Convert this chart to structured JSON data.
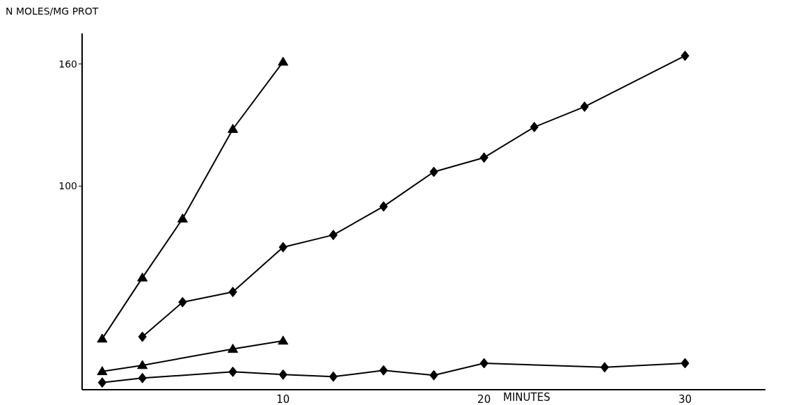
{
  "chart_data": {
    "type": "scatter",
    "xlabel": "MINUTES",
    "ylabel": "N MOLES/MG PROT",
    "xlim": [
      0,
      34
    ],
    "ylim": [
      0,
      175
    ],
    "xticks": [
      10,
      20,
      30
    ],
    "yticks": [
      100,
      160
    ],
    "grid": false,
    "legend": false,
    "line_style": "solid",
    "series": [
      {
        "type": "line",
        "marker": "triangle",
        "color": "#000000",
        "x": [
          1,
          3,
          5,
          7.5,
          10
        ],
        "values": [
          25,
          55,
          84,
          128,
          161
        ]
      },
      {
        "type": "line",
        "marker": "diamond",
        "color": "#000000",
        "x": [
          3,
          5,
          7.5,
          10,
          12.5,
          15,
          17.5,
          20,
          22.5,
          25,
          30
        ],
        "values": [
          26,
          43,
          48,
          70,
          76,
          90,
          107,
          114,
          129,
          139,
          164
        ]
      },
      {
        "type": "line",
        "marker": "triangle",
        "color": "#000000",
        "x": [
          1,
          3,
          7.5,
          10
        ],
        "values": [
          9,
          12,
          20,
          24
        ]
      },
      {
        "type": "line",
        "marker": "diamond",
        "color": "#000000",
        "x": [
          1,
          3,
          7.5,
          10,
          12.5,
          15,
          17.5,
          20,
          26,
          30
        ],
        "values": [
          3.5,
          5.7,
          8.8,
          7.4,
          6.4,
          9.5,
          7.1,
          13,
          11,
          13
        ]
      }
    ]
  }
}
